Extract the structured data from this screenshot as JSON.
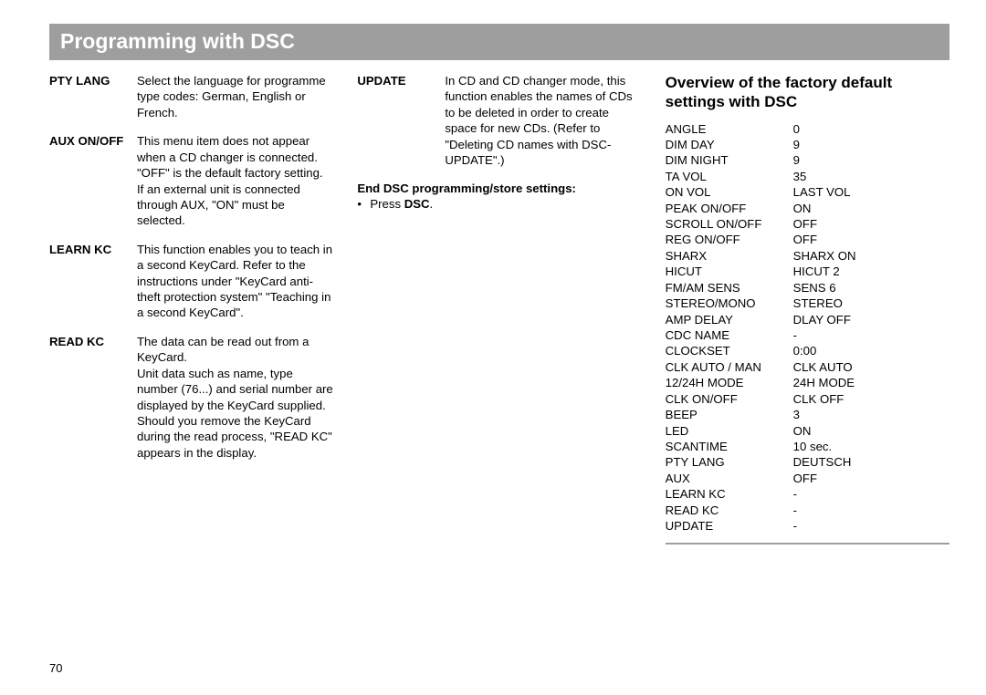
{
  "title": "Programming with DSC",
  "pageNumber": "70",
  "col1": {
    "entries": [
      {
        "term": "PTY LANG",
        "desc": "Select the language for programme type codes: German, English or French."
      },
      {
        "term": "AUX ON/OFF",
        "desc": "This menu item does not appear when a CD changer is connected. \"OFF\" is the default factory setting.\nIf an external unit is connected through AUX, \"ON\" must be selected."
      },
      {
        "term": "LEARN KC",
        "desc": "This function enables you to teach in a second KeyCard. Refer to the instructions under \"KeyCard anti-theft protection system\" \"Teaching in a second KeyCard\"."
      },
      {
        "term": "READ KC",
        "desc": "The data can be read out from a KeyCard.\nUnit data such as name, type number (76...) and serial number are displayed by the KeyCard supplied.\nShould you remove the KeyCard during the read process, \"READ KC\" appears in the display."
      }
    ]
  },
  "col2": {
    "entry": {
      "term": "UPDATE",
      "desc": "In CD and CD changer mode, this function enables the names of CDs to be deleted in order to create space for new CDs. (Refer to \"Deleting CD names with DSC-UPDATE\".)"
    },
    "endHeading": "End DSC programming/store settings:",
    "bulletPrefix": "Press ",
    "bulletBold": "DSC",
    "bulletSuffix": "."
  },
  "col3": {
    "heading": "Overview of the factory default settings with DSC",
    "rows": [
      {
        "label": "ANGLE",
        "value": "0"
      },
      {
        "label": "DIM DAY",
        "value": "9"
      },
      {
        "label": "DIM NIGHT",
        "value": "9"
      },
      {
        "label": "TA VOL",
        "value": "35"
      },
      {
        "label": "ON VOL",
        "value": "LAST VOL"
      },
      {
        "label": "PEAK ON/OFF",
        "value": "ON"
      },
      {
        "label": "SCROLL ON/OFF",
        "value": "OFF"
      },
      {
        "label": "REG ON/OFF",
        "value": "OFF"
      },
      {
        "label": "SHARX",
        "value": "SHARX ON"
      },
      {
        "label": "HICUT",
        "value": "HICUT 2"
      },
      {
        "label": "FM/AM SENS",
        "value": "SENS 6"
      },
      {
        "label": "STEREO/MONO",
        "value": "STEREO"
      },
      {
        "label": "AMP DELAY",
        "value": "DLAY OFF"
      },
      {
        "label": "CDC NAME",
        "value": "-"
      },
      {
        "label": "CLOCKSET",
        "value": "0:00"
      },
      {
        "label": "CLK AUTO / MAN",
        "value": "CLK AUTO"
      },
      {
        "label": "12/24H MODE",
        "value": "24H MODE"
      },
      {
        "label": "CLK ON/OFF",
        "value": "CLK OFF"
      },
      {
        "label": "BEEP",
        "value": "3"
      },
      {
        "label": "LED",
        "value": "ON"
      },
      {
        "label": "SCANTIME",
        "value": "10 sec."
      },
      {
        "label": "PTY LANG",
        "value": "DEUTSCH"
      },
      {
        "label": "AUX",
        "value": "OFF"
      },
      {
        "label": "LEARN KC",
        "value": "-"
      },
      {
        "label": "READ KC",
        "value": "-"
      },
      {
        "label": "UPDATE",
        "value": "-"
      }
    ]
  }
}
